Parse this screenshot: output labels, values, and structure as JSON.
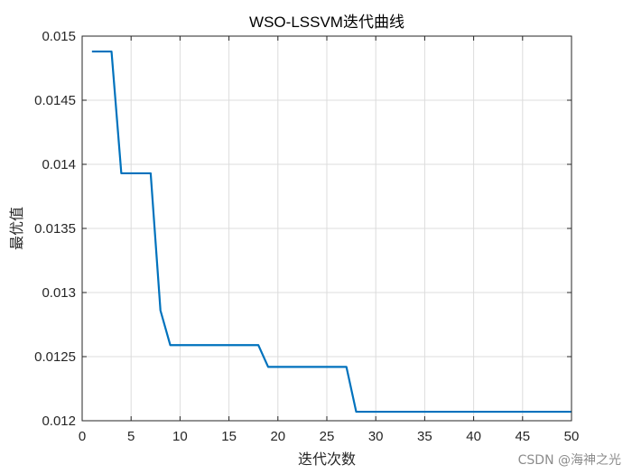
{
  "chart_data": {
    "type": "line",
    "title": "WSO-LSSVM迭代曲线",
    "xlabel": "迭代次数",
    "ylabel": "最优值",
    "xlim": [
      0,
      50
    ],
    "ylim": [
      0.012,
      0.015
    ],
    "xticks": [
      0,
      5,
      10,
      15,
      20,
      25,
      30,
      35,
      40,
      45,
      50
    ],
    "xtick_labels": [
      "0",
      "5",
      "10",
      "15",
      "20",
      "25",
      "30",
      "35",
      "40",
      "45",
      "50"
    ],
    "yticks": [
      0.012,
      0.0125,
      0.013,
      0.0135,
      0.014,
      0.0145,
      0.015
    ],
    "ytick_labels": [
      "0.012",
      "0.0125",
      "0.013",
      "0.0135",
      "0.014",
      "0.0145",
      "0.015"
    ],
    "grid": true,
    "series": [
      {
        "color": "#0072BD",
        "x": [
          1,
          2,
          3,
          4,
          5,
          6,
          7,
          8,
          9,
          10,
          11,
          12,
          13,
          14,
          15,
          16,
          17,
          18,
          19,
          20,
          21,
          22,
          23,
          24,
          25,
          26,
          27,
          28,
          29,
          30,
          31,
          32,
          33,
          34,
          35,
          36,
          37,
          38,
          39,
          40,
          41,
          42,
          43,
          44,
          45,
          46,
          47,
          48,
          49,
          50
        ],
        "y": [
          0.01488,
          0.01488,
          0.01488,
          0.01393,
          0.01393,
          0.01393,
          0.01393,
          0.01286,
          0.01259,
          0.01259,
          0.01259,
          0.01259,
          0.01259,
          0.01259,
          0.01259,
          0.01259,
          0.01259,
          0.01259,
          0.01242,
          0.01242,
          0.01242,
          0.01242,
          0.01242,
          0.01242,
          0.01242,
          0.01242,
          0.01242,
          0.01207,
          0.01207,
          0.01207,
          0.01207,
          0.01207,
          0.01207,
          0.01207,
          0.01207,
          0.01207,
          0.01207,
          0.01207,
          0.01207,
          0.01207,
          0.01207,
          0.01207,
          0.01207,
          0.01207,
          0.01207,
          0.01207,
          0.01207,
          0.01207,
          0.01207,
          0.01207
        ]
      }
    ]
  },
  "watermark": "CSDN @海神之光"
}
